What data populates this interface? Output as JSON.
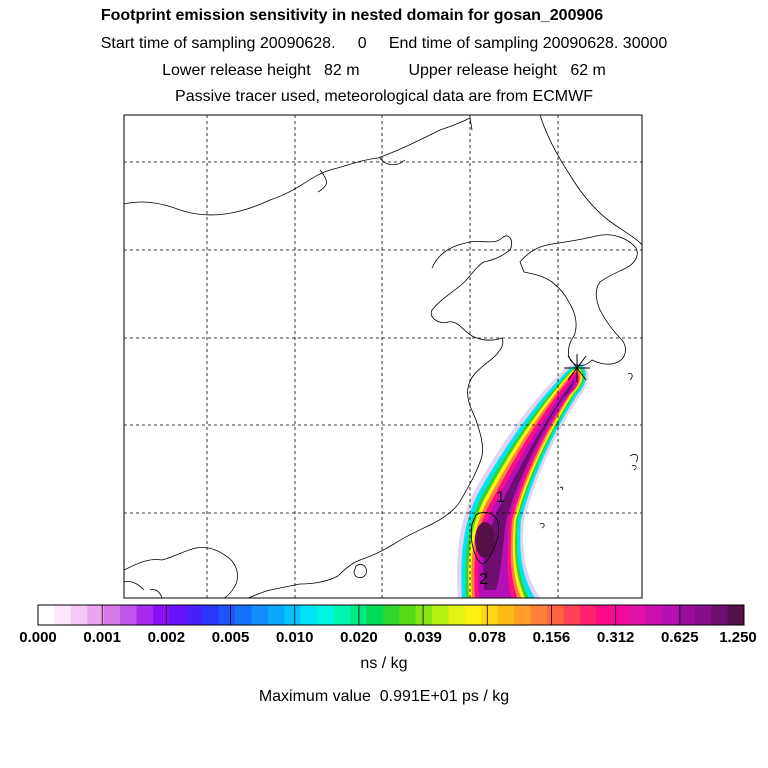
{
  "header": {
    "title": "Footprint emission sensitivity in nested domain for gosan_200906",
    "sampling_line": "Start time of sampling 20090628.     0     End time of sampling 20090628. 30000",
    "release_line": "Lower release height   82 m           Upper release height   62 m",
    "tracer_line": "Passive tracer used, meteorological data are from ECMWF"
  },
  "map": {
    "markers": [
      "1",
      "2"
    ],
    "receptor_symbol": "star"
  },
  "colorbar": {
    "tick_labels": [
      "0.000",
      "0.001",
      "0.002",
      "0.005",
      "0.010",
      "0.020",
      "0.039",
      "0.078",
      "0.156",
      "0.312",
      "0.625",
      "1.250"
    ],
    "colors": [
      "#ffffff",
      "#fce6fc",
      "#f5c8f5",
      "#eaa5ef",
      "#d57be8",
      "#c255e9",
      "#a82af0",
      "#8a10f8",
      "#6a10fa",
      "#4a20fa",
      "#2a38fb",
      "#1d55fb",
      "#1570fb",
      "#118dfb",
      "#0aa8fb",
      "#06c4fb",
      "#00e3f5",
      "#00f6e0",
      "#00f5b0",
      "#00eb85",
      "#00dc5a",
      "#2ed62e",
      "#55dc14",
      "#88e614",
      "#b8f014",
      "#e0f514",
      "#fcf014",
      "#ffd614",
      "#ffba14",
      "#ff9e28",
      "#ff803a",
      "#ff6240",
      "#ff4058",
      "#ff2070",
      "#ff0a88",
      "#f2089a",
      "#e010a8",
      "#cc10b0",
      "#b510b8",
      "#9a0e9e",
      "#850e8a",
      "#6e0e70",
      "#55104a"
    ],
    "units": "ns / kg"
  },
  "footer": {
    "max_value": "Maximum value  0.991E+01 ps / kg"
  }
}
